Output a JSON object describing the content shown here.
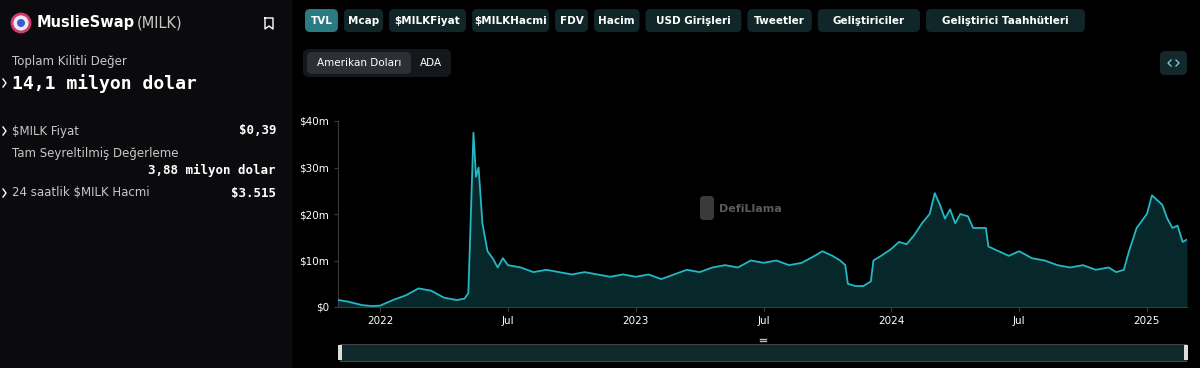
{
  "header": {
    "name": "MuslieSwap",
    "symbol": "(MILK)"
  },
  "headline": {
    "label": "Toplam Kilitli Değer",
    "value": "14,1 milyon dolar"
  },
  "stats": [
    {
      "label": "$MILK Fiyat",
      "value": "$0,39"
    },
    {
      "label": "Tam Seyreltilmiş Değerleme",
      "value": "3,88 milyon dolar"
    },
    {
      "label": "24 saatlik $MILK Hacmi",
      "value": "$3.515"
    }
  ],
  "tabs": [
    "TVL",
    "Mcap",
    "$MILKFiyat",
    "$MILKHacmi",
    "FDV",
    "Hacim",
    "USD Girişleri",
    "Tweetler",
    "Geliştiriciler",
    "Geliştirici Taahhütleri"
  ],
  "active_tab": "TVL",
  "currency_options": [
    "Amerikan Doları",
    "ADA"
  ],
  "active_currency": "Amerikan Doları",
  "watermark": "DefiLlama",
  "chart_data": {
    "type": "area",
    "color": "#22b8c4",
    "grid": false,
    "x": [
      2021.835,
      2021.87,
      2021.9,
      2021.93,
      2021.97,
      2022.0,
      2022.05,
      2022.1,
      2022.15,
      2022.2,
      2022.25,
      2022.3,
      2022.33,
      2022.345,
      2022.355,
      2022.365,
      2022.375,
      2022.385,
      2022.4,
      2022.42,
      2022.44,
      2022.46,
      2022.48,
      2022.5,
      2022.55,
      2022.6,
      2022.65,
      2022.7,
      2022.75,
      2022.8,
      2022.85,
      2022.9,
      2022.95,
      2023.0,
      2023.05,
      2023.1,
      2023.15,
      2023.2,
      2023.25,
      2023.3,
      2023.35,
      2023.4,
      2023.45,
      2023.5,
      2023.55,
      2023.6,
      2023.65,
      2023.7,
      2023.73,
      2023.77,
      2023.8,
      2023.82,
      2023.83,
      2023.86,
      2023.89,
      2023.92,
      2023.93,
      2023.96,
      2024.0,
      2024.03,
      2024.06,
      2024.09,
      2024.12,
      2024.15,
      2024.17,
      2024.19,
      2024.21,
      2024.23,
      2024.25,
      2024.27,
      2024.3,
      2024.32,
      2024.37,
      2024.38,
      2024.42,
      2024.46,
      2024.5,
      2024.55,
      2024.6,
      2024.65,
      2024.7,
      2024.75,
      2024.8,
      2024.85,
      2024.88,
      2024.91,
      2024.93,
      2024.96,
      2025.0,
      2025.02,
      2025.04,
      2025.06,
      2025.08,
      2025.1,
      2025.12,
      2025.14,
      2025.157
    ],
    "values": [
      1.5,
      1.2,
      0.8,
      0.4,
      0.2,
      0.3,
      1.5,
      2.5,
      4.0,
      3.5,
      2.0,
      1.5,
      1.8,
      3.0,
      20,
      37.5,
      28,
      30,
      18,
      12,
      10.5,
      8.5,
      10.5,
      9.0,
      8.5,
      7.5,
      8.0,
      7.5,
      7.0,
      7.5,
      7.0,
      6.5,
      7.0,
      6.5,
      7.0,
      6.0,
      7.0,
      8.0,
      7.5,
      8.5,
      9.0,
      8.5,
      10.0,
      9.5,
      10.0,
      9.0,
      9.5,
      11.0,
      12.0,
      11.0,
      10.0,
      9.0,
      5.0,
      4.5,
      4.5,
      5.5,
      10.0,
      11.0,
      12.5,
      14.0,
      13.5,
      15.5,
      18.0,
      20.0,
      24.5,
      22.0,
      19.0,
      21.0,
      18.0,
      20.0,
      19.5,
      17.0,
      17.0,
      13.0,
      12.0,
      11.0,
      12.0,
      10.5,
      10.0,
      9.0,
      8.5,
      9.0,
      8.0,
      8.5,
      7.5,
      8.0,
      12.0,
      17.0,
      20.0,
      24.0,
      23.0,
      22.0,
      19.0,
      17.0,
      17.5,
      14.0,
      14.5
    ],
    "xlim": [
      2021.835,
      2025.157
    ],
    "xticks": [
      2022,
      {
        "value": 2022.5,
        "label": "Jul"
      },
      2023,
      {
        "value": 2023.5,
        "label": "Jul"
      },
      2024,
      {
        "value": 2024.5,
        "label": "Jul"
      },
      2025
    ],
    "ylim": [
      0,
      40
    ],
    "yticks": [
      {
        "value": 0,
        "label": "$0"
      },
      {
        "value": 10,
        "label": "$10m"
      },
      {
        "value": 20,
        "label": "$20m"
      },
      {
        "value": 30,
        "label": "$30m"
      },
      {
        "value": 40,
        "label": "$40m"
      }
    ]
  }
}
